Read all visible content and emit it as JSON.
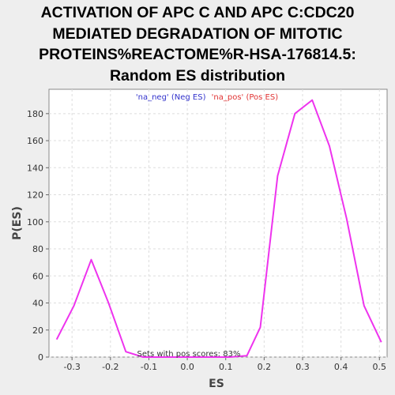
{
  "chart_data": {
    "type": "line",
    "title_lines": [
      "ACTIVATION OF APC C AND APC C:CDC20",
      "MEDIATED DEGRADATION OF MITOTIC",
      "PROTEINS%REACTOME%R-HSA-176814.5:",
      "Random ES distribution"
    ],
    "xlabel": "ES",
    "ylabel": "P(ES)",
    "xlim": [
      -0.36,
      0.52
    ],
    "ylim": [
      0,
      198
    ],
    "xticks": [
      -0.3,
      -0.2,
      -0.1,
      0.0,
      0.1,
      0.2,
      0.3,
      0.4,
      0.5
    ],
    "xtick_labels": [
      "-0.3",
      "-0.2",
      "-0.1",
      "0.0",
      "0.1",
      "0.2",
      "0.3",
      "0.4",
      "0.5"
    ],
    "yticks": [
      0,
      20,
      40,
      60,
      80,
      100,
      120,
      140,
      160,
      180
    ],
    "ytick_labels": [
      "0",
      "20",
      "40",
      "60",
      "80",
      "100",
      "120",
      "140",
      "160",
      "180"
    ],
    "grid": true,
    "legend": {
      "placement": "top-center",
      "entries": [
        {
          "label": "'na_neg' (Neg ES)",
          "color": "#3333cc"
        },
        {
          "label": "'na_pos' (Pos ES)",
          "color": "#e03333"
        }
      ]
    },
    "annotation": "Sets with pos scores: 83%",
    "series": [
      {
        "color": "#ee33ee",
        "x": [
          -0.34,
          -0.295,
          -0.25,
          -0.205,
          -0.16,
          -0.115,
          -0.07,
          -0.025,
          0.02,
          0.065,
          0.11,
          0.155,
          0.19,
          0.235,
          0.28,
          0.325,
          0.37,
          0.415,
          0.46,
          0.505
        ],
        "y": [
          13,
          38,
          72,
          40,
          4,
          0,
          0,
          0,
          0,
          0,
          0,
          1,
          22,
          134,
          180,
          190,
          156,
          102,
          38,
          11
        ]
      }
    ]
  }
}
